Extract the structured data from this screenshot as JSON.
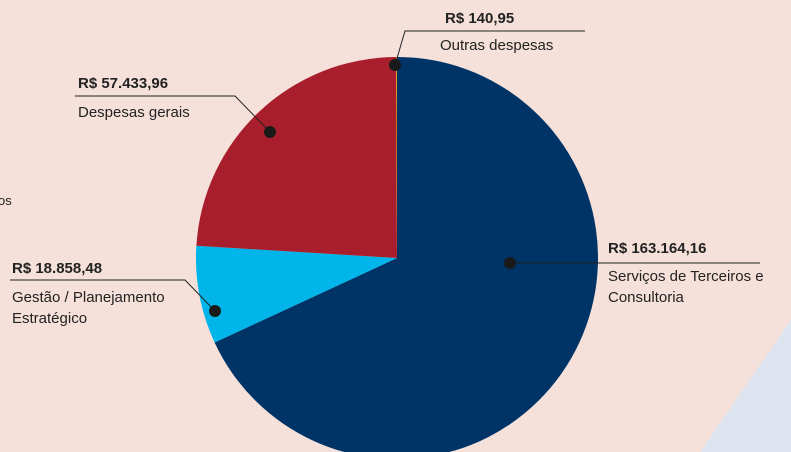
{
  "chart_data": {
    "type": "pie",
    "categories": [
      "Serviços de Terceiros e Consultoria",
      "Gestão / Planejamento Estratégico",
      "Despesas gerais",
      "Outras despesas"
    ],
    "values": [
      163164.16,
      18858.48,
      57433.96,
      140.95
    ],
    "value_labels": [
      "R$ 163.164,16",
      "R$ 18.858,48",
      "R$ 57.433,96",
      "R$ 140,95"
    ],
    "colors": [
      "#003366",
      "#00b5ea",
      "#a91e2c",
      "#f2c400"
    ],
    "annotations": [
      "os"
    ]
  }
}
